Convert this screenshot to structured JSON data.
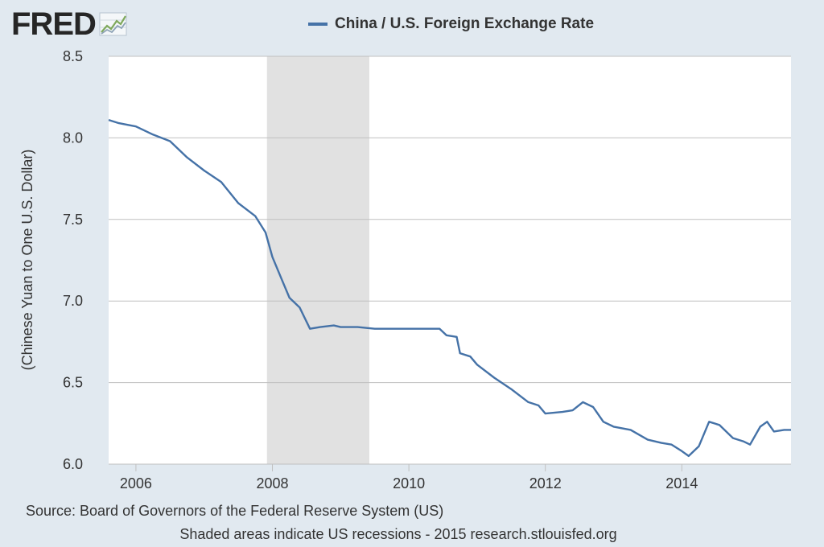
{
  "brand": {
    "logo_text": "FRED",
    "logo_icon": "fred-chart-icon"
  },
  "legend": {
    "label": "China / U.S. Foreign Exchange Rate",
    "color": "#4572a7"
  },
  "footer": {
    "source": "Source: Board of Governors of the Federal Reserve System (US)",
    "note": "Shaded areas indicate US recessions - 2015 research.stlouisfed.org"
  },
  "chart_data": {
    "type": "line",
    "title": "",
    "xlabel": "",
    "ylabel": "(Chinese Yuan to One U.S. Dollar)",
    "xlim": [
      2005.6,
      2015.6
    ],
    "ylim": [
      6.0,
      8.5
    ],
    "xticks": [
      2006,
      2008,
      2010,
      2012,
      2014
    ],
    "xtick_labels": [
      "2006",
      "2008",
      "2010",
      "2012",
      "2014"
    ],
    "yticks": [
      6.0,
      6.5,
      7.0,
      7.5,
      8.0,
      8.5
    ],
    "ytick_labels": [
      "6.0",
      "6.5",
      "7.0",
      "7.5",
      "8.0",
      "8.5"
    ],
    "grid": "horizontal",
    "recession_shading": [
      [
        2007.92,
        2009.42
      ]
    ],
    "series": [
      {
        "name": "China / U.S. Foreign Exchange Rate",
        "color": "#4572a7",
        "x": [
          2005.6,
          2005.75,
          2006.0,
          2006.25,
          2006.5,
          2006.75,
          2007.0,
          2007.25,
          2007.5,
          2007.75,
          2007.9,
          2008.0,
          2008.15,
          2008.25,
          2008.4,
          2008.55,
          2008.7,
          2008.9,
          2009.0,
          2009.25,
          2009.5,
          2009.75,
          2010.0,
          2010.25,
          2010.45,
          2010.55,
          2010.7,
          2010.75,
          2010.9,
          2011.0,
          2011.25,
          2011.5,
          2011.75,
          2011.9,
          2012.0,
          2012.25,
          2012.4,
          2012.55,
          2012.7,
          2012.85,
          2013.0,
          2013.25,
          2013.5,
          2013.7,
          2013.85,
          2014.0,
          2014.1,
          2014.25,
          2014.4,
          2014.55,
          2014.75,
          2014.9,
          2015.0,
          2015.15,
          2015.25,
          2015.35,
          2015.5,
          2015.6
        ],
        "y": [
          8.11,
          8.09,
          8.07,
          8.02,
          7.98,
          7.88,
          7.8,
          7.73,
          7.6,
          7.52,
          7.42,
          7.27,
          7.12,
          7.02,
          6.96,
          6.83,
          6.84,
          6.85,
          6.84,
          6.84,
          6.83,
          6.83,
          6.83,
          6.83,
          6.83,
          6.79,
          6.78,
          6.68,
          6.66,
          6.61,
          6.53,
          6.46,
          6.38,
          6.36,
          6.31,
          6.32,
          6.33,
          6.38,
          6.35,
          6.26,
          6.23,
          6.21,
          6.15,
          6.13,
          6.12,
          6.08,
          6.05,
          6.11,
          6.26,
          6.24,
          6.16,
          6.14,
          6.12,
          6.23,
          6.26,
          6.2,
          6.21,
          6.21
        ]
      }
    ]
  }
}
